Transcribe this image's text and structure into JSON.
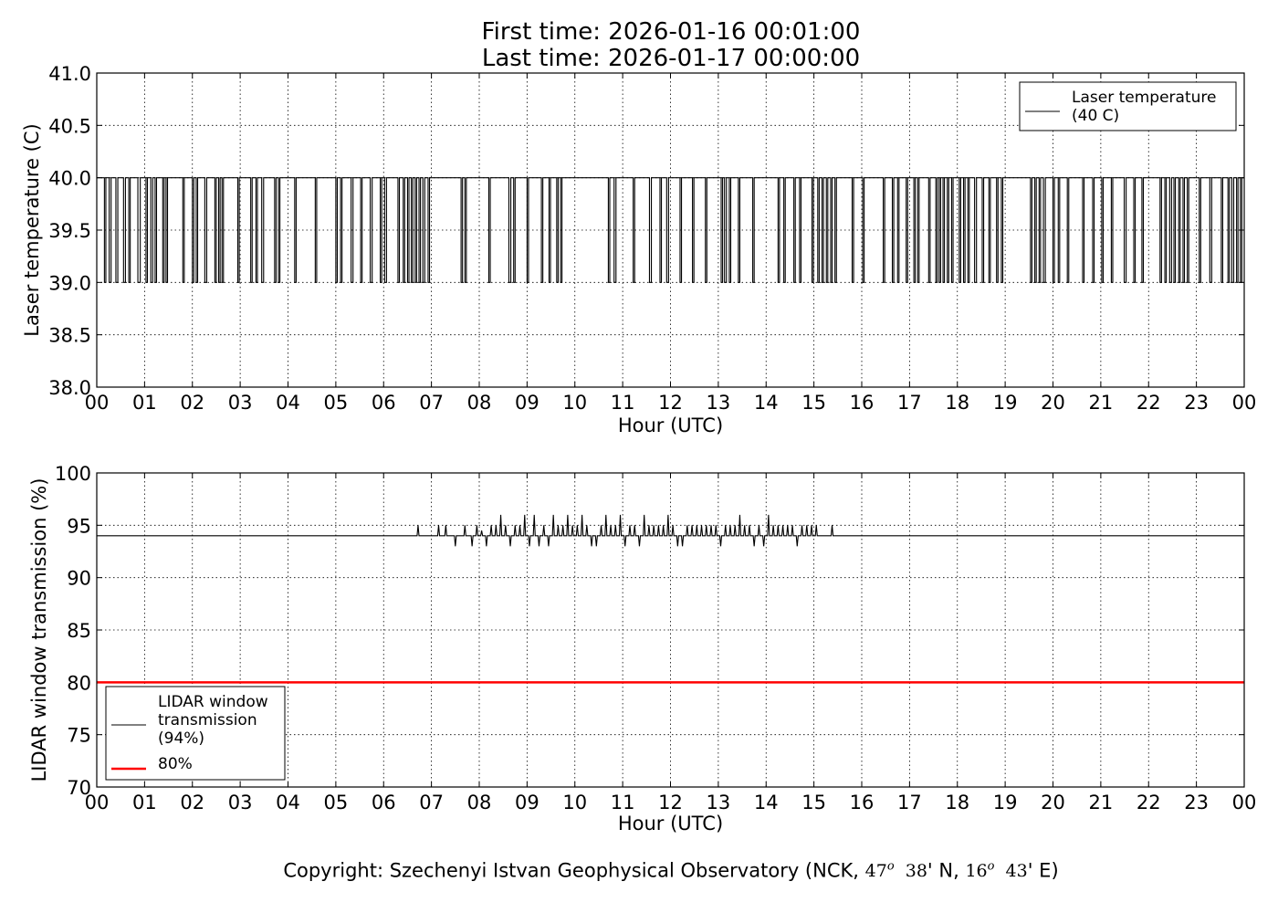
{
  "title": {
    "line1": "First time: 2026-01-16 00:01:00",
    "line2": "Last time: 2026-01-17 00:00:00"
  },
  "footer": {
    "prefix": "Copyright: Szechenyi Istvan Geophysical Observatory (NCK, ",
    "lat_deg": "47",
    "lat_min": "38",
    "lat_suffix": "' N, ",
    "lon_deg": "16",
    "lon_min": "43",
    "lon_suffix": "' E)",
    "deg_symbol": "o"
  },
  "chart_data": [
    {
      "type": "line",
      "ylabel": "Laser temperature (C)",
      "xlabel": "Hour (UTC)",
      "xlim": [
        0,
        24
      ],
      "ylim": [
        38.0,
        41.0
      ],
      "x_ticks": [
        "00",
        "01",
        "02",
        "03",
        "04",
        "05",
        "06",
        "07",
        "08",
        "09",
        "10",
        "11",
        "12",
        "13",
        "14",
        "15",
        "16",
        "17",
        "18",
        "19",
        "20",
        "21",
        "22",
        "23",
        "00"
      ],
      "y_ticks": [
        "38.0",
        "38.5",
        "39.0",
        "39.5",
        "40.0",
        "40.5",
        "41.0"
      ],
      "grid": true,
      "legend_position": "top-right",
      "series": [
        {
          "name": "Laser temperature\n(40 C)",
          "color": "#000000",
          "baseline": 40.0,
          "dip_value": 39.0,
          "dips_hours_to": [
            [
              0.16,
              0.19
            ],
            [
              0.26,
              0.3
            ],
            [
              0.4,
              0.44
            ],
            [
              0.56,
              0.6
            ],
            [
              0.67,
              0.7
            ],
            [
              0.86,
              0.91
            ],
            [
              1.03,
              1.06
            ],
            [
              1.13,
              1.17
            ],
            [
              1.22,
              1.25
            ],
            [
              1.38,
              1.41
            ],
            [
              1.45,
              1.48
            ],
            [
              1.8,
              1.83
            ],
            [
              2.0,
              2.03
            ],
            [
              2.08,
              2.11
            ],
            [
              2.26,
              2.3
            ],
            [
              2.47,
              2.5
            ],
            [
              2.55,
              2.58
            ],
            [
              2.62,
              2.65
            ],
            [
              2.95,
              2.98
            ],
            [
              3.22,
              3.25
            ],
            [
              3.33,
              3.36
            ],
            [
              3.45,
              3.49
            ],
            [
              3.72,
              3.75
            ],
            [
              3.8,
              3.83
            ],
            [
              4.14,
              4.17
            ],
            [
              4.57,
              4.6
            ],
            [
              5.0,
              5.03
            ],
            [
              5.1,
              5.13
            ],
            [
              5.32,
              5.36
            ],
            [
              5.52,
              5.55
            ],
            [
              5.72,
              5.76
            ],
            [
              5.93,
              5.96
            ],
            [
              6.02,
              6.06
            ],
            [
              6.3,
              6.33
            ],
            [
              6.41,
              6.44
            ],
            [
              6.5,
              6.53
            ],
            [
              6.58,
              6.61
            ],
            [
              6.66,
              6.69
            ],
            [
              6.74,
              6.77
            ],
            [
              6.82,
              6.86
            ],
            [
              6.93,
              6.96
            ],
            [
              7.62,
              7.65
            ],
            [
              7.7,
              7.73
            ],
            [
              8.2,
              8.23
            ],
            [
              8.62,
              8.66
            ],
            [
              8.72,
              8.75
            ],
            [
              9.0,
              9.03
            ],
            [
              9.3,
              9.33
            ],
            [
              9.46,
              9.49
            ],
            [
              9.62,
              9.65
            ],
            [
              9.7,
              9.73
            ],
            [
              10.7,
              10.73
            ],
            [
              10.82,
              10.86
            ],
            [
              11.22,
              11.25
            ],
            [
              11.56,
              11.6
            ],
            [
              11.78,
              11.81
            ],
            [
              11.92,
              11.96
            ],
            [
              12.2,
              12.23
            ],
            [
              12.46,
              12.49
            ],
            [
              12.73,
              12.76
            ],
            [
              13.06,
              13.09
            ],
            [
              13.13,
              13.17
            ],
            [
              13.23,
              13.26
            ],
            [
              13.42,
              13.45
            ],
            [
              13.72,
              13.75
            ],
            [
              14.25,
              14.28
            ],
            [
              14.37,
              14.4
            ],
            [
              14.58,
              14.61
            ],
            [
              14.7,
              14.73
            ],
            [
              14.96,
              14.99
            ],
            [
              15.08,
              15.11
            ],
            [
              15.17,
              15.2
            ],
            [
              15.26,
              15.29
            ],
            [
              15.35,
              15.38
            ],
            [
              15.44,
              15.47
            ],
            [
              15.8,
              15.83
            ],
            [
              16.02,
              16.05
            ],
            [
              16.45,
              16.48
            ],
            [
              16.64,
              16.67
            ],
            [
              16.75,
              16.78
            ],
            [
              16.93,
              16.96
            ],
            [
              17.09,
              17.12
            ],
            [
              17.17,
              17.2
            ],
            [
              17.4,
              17.43
            ],
            [
              17.55,
              17.58
            ],
            [
              17.62,
              17.65
            ],
            [
              17.7,
              17.73
            ],
            [
              17.79,
              17.82
            ],
            [
              17.88,
              17.91
            ],
            [
              18.04,
              18.07
            ],
            [
              18.13,
              18.16
            ],
            [
              18.22,
              18.25
            ],
            [
              18.36,
              18.4
            ],
            [
              18.52,
              18.55
            ],
            [
              18.66,
              18.69
            ],
            [
              18.82,
              18.85
            ],
            [
              18.92,
              18.95
            ],
            [
              19.53,
              19.56
            ],
            [
              19.62,
              19.65
            ],
            [
              19.71,
              19.74
            ],
            [
              19.8,
              19.84
            ],
            [
              20.0,
              20.03
            ],
            [
              20.11,
              20.14
            ],
            [
              20.3,
              20.33
            ],
            [
              20.62,
              20.65
            ],
            [
              20.83,
              20.86
            ],
            [
              21.02,
              21.05
            ],
            [
              21.22,
              21.25
            ],
            [
              21.49,
              21.53
            ],
            [
              21.69,
              21.72
            ],
            [
              21.86,
              21.89
            ],
            [
              22.24,
              22.27
            ],
            [
              22.34,
              22.37
            ],
            [
              22.44,
              22.48
            ],
            [
              22.53,
              22.56
            ],
            [
              22.63,
              22.66
            ],
            [
              22.72,
              22.75
            ],
            [
              22.81,
              22.84
            ],
            [
              23.06,
              23.09
            ],
            [
              23.28,
              23.32
            ],
            [
              23.52,
              23.55
            ],
            [
              23.66,
              23.69
            ],
            [
              23.74,
              23.78
            ],
            [
              23.84,
              23.87
            ],
            [
              23.92,
              23.95
            ]
          ]
        }
      ]
    },
    {
      "type": "line",
      "ylabel": "LIDAR window transmission (%)",
      "xlabel": "Hour (UTC)",
      "xlim": [
        0,
        24
      ],
      "ylim": [
        70,
        100
      ],
      "x_ticks": [
        "00",
        "01",
        "02",
        "03",
        "04",
        "05",
        "06",
        "07",
        "08",
        "09",
        "10",
        "11",
        "12",
        "13",
        "14",
        "15",
        "16",
        "17",
        "18",
        "19",
        "20",
        "21",
        "22",
        "23",
        "00"
      ],
      "y_ticks": [
        "70",
        "75",
        "80",
        "85",
        "90",
        "95",
        "100"
      ],
      "grid": true,
      "legend_position": "bottom-left",
      "series": [
        {
          "name": "LIDAR window\ntransmission\n(94%)",
          "color": "#000000",
          "baseline": 94,
          "noisy_range_hours": [
            6.7,
            15.4
          ],
          "spikes": [
            [
              6.72,
              95
            ],
            [
              7.15,
              95
            ],
            [
              7.3,
              95
            ],
            [
              7.5,
              93
            ],
            [
              7.7,
              95
            ],
            [
              7.85,
              93
            ],
            [
              7.95,
              95
            ],
            [
              8.05,
              94.5
            ],
            [
              8.15,
              93
            ],
            [
              8.25,
              95
            ],
            [
              8.35,
              95
            ],
            [
              8.45,
              96
            ],
            [
              8.55,
              95
            ],
            [
              8.65,
              93
            ],
            [
              8.75,
              95
            ],
            [
              8.85,
              95
            ],
            [
              8.95,
              96
            ],
            [
              9.05,
              93
            ],
            [
              9.15,
              96
            ],
            [
              9.25,
              93
            ],
            [
              9.35,
              95
            ],
            [
              9.45,
              93
            ],
            [
              9.55,
              96
            ],
            [
              9.65,
              95
            ],
            [
              9.75,
              95
            ],
            [
              9.85,
              96
            ],
            [
              9.95,
              95
            ],
            [
              10.05,
              95
            ],
            [
              10.15,
              96
            ],
            [
              10.25,
              95
            ],
            [
              10.35,
              93
            ],
            [
              10.45,
              93
            ],
            [
              10.55,
              95
            ],
            [
              10.65,
              96
            ],
            [
              10.75,
              95
            ],
            [
              10.85,
              95
            ],
            [
              10.95,
              96
            ],
            [
              11.05,
              93
            ],
            [
              11.15,
              95
            ],
            [
              11.25,
              95
            ],
            [
              11.35,
              93
            ],
            [
              11.45,
              96
            ],
            [
              11.55,
              95
            ],
            [
              11.65,
              95
            ],
            [
              11.75,
              95
            ],
            [
              11.85,
              95
            ],
            [
              11.95,
              96
            ],
            [
              12.05,
              95
            ],
            [
              12.15,
              93
            ],
            [
              12.25,
              93
            ],
            [
              12.35,
              95
            ],
            [
              12.45,
              95
            ],
            [
              12.55,
              95
            ],
            [
              12.65,
              95
            ],
            [
              12.75,
              95
            ],
            [
              12.85,
              95
            ],
            [
              12.95,
              95
            ],
            [
              13.05,
              93
            ],
            [
              13.15,
              95
            ],
            [
              13.25,
              95
            ],
            [
              13.35,
              95
            ],
            [
              13.45,
              96
            ],
            [
              13.55,
              95
            ],
            [
              13.65,
              95
            ],
            [
              13.75,
              93
            ],
            [
              13.85,
              95
            ],
            [
              13.95,
              93
            ],
            [
              14.05,
              96
            ],
            [
              14.15,
              95
            ],
            [
              14.25,
              95
            ],
            [
              14.35,
              95
            ],
            [
              14.45,
              95
            ],
            [
              14.55,
              95
            ],
            [
              14.65,
              93
            ],
            [
              14.75,
              95
            ],
            [
              14.85,
              95
            ],
            [
              14.95,
              95
            ],
            [
              15.05,
              95
            ],
            [
              15.38,
              95
            ]
          ]
        },
        {
          "name": "80%",
          "color": "#ff0000",
          "values": [
            80,
            80
          ],
          "x": [
            0,
            24
          ]
        }
      ]
    }
  ]
}
